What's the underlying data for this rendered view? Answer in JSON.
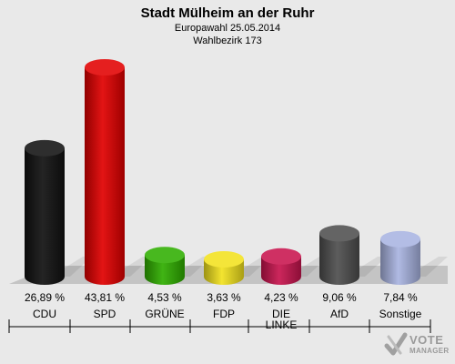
{
  "header": {
    "title": "Stadt Mülheim an der Ruhr",
    "subtitle1": "Europawahl 25.05.2014",
    "subtitle2": "Wahlbezirk 173"
  },
  "chart_data": {
    "type": "bar",
    "title": "Stadt Mülheim an der Ruhr",
    "categories": [
      "CDU",
      "SPD",
      "GRÜNE",
      "FDP",
      "DIE LINKE",
      "AfD",
      "Sonstige"
    ],
    "values": [
      26.89,
      43.81,
      4.53,
      3.63,
      4.23,
      9.06,
      7.84
    ],
    "labels": [
      "26,89 %",
      "43,81 %",
      "4,53 %",
      "3,63 %",
      "4,23 %",
      "9,06 %",
      "7,84 %"
    ],
    "colors": [
      "#111111",
      "#e10000",
      "#2fae00",
      "#f2e21e",
      "#c8144e",
      "#4f4f4f",
      "#a9b4e1"
    ],
    "unit": "%"
  },
  "logo": {
    "line1": "VOTE",
    "line2": "MANAGER",
    "icon": "vote-manager-check-icon"
  }
}
